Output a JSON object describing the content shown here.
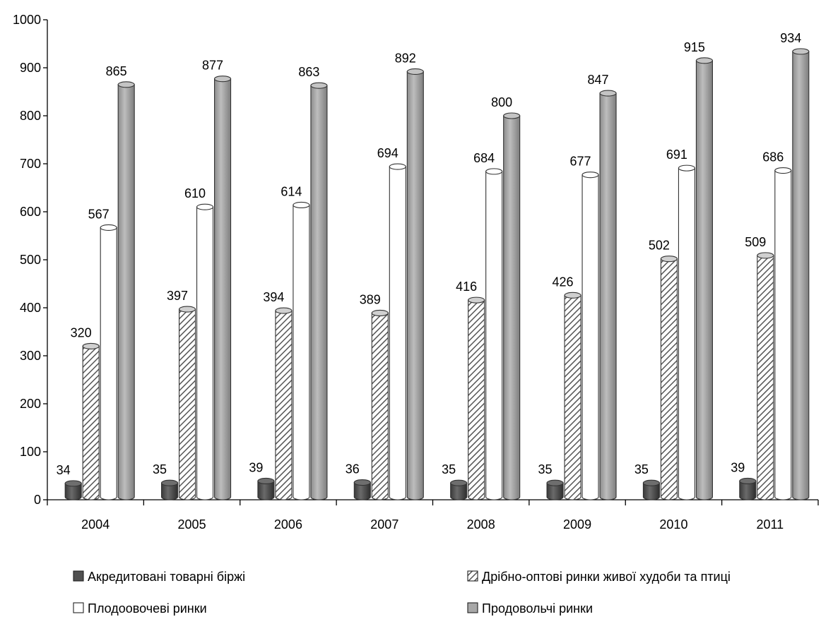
{
  "chart_data": {
    "type": "bar",
    "categories": [
      "2004",
      "2005",
      "2006",
      "2007",
      "2008",
      "2009",
      "2010",
      "2011"
    ],
    "series": [
      {
        "name": "Акредитовані товарні біржі",
        "values": [
          34,
          35,
          39,
          36,
          35,
          35,
          35,
          39
        ],
        "color": "#505050",
        "pattern": "solid"
      },
      {
        "name": "Дрібно-оптові ринки живої худоби та птиці",
        "values": [
          320,
          397,
          394,
          389,
          416,
          426,
          502,
          509
        ],
        "color": "#c8c8c8",
        "pattern": "hatch"
      },
      {
        "name": "Плодоовочеві ринки",
        "values": [
          567,
          610,
          614,
          694,
          684,
          677,
          691,
          686
        ],
        "color": "#ffffff",
        "pattern": "solid"
      },
      {
        "name": "Продовольчі ринки",
        "values": [
          865,
          877,
          863,
          892,
          800,
          847,
          915,
          934
        ],
        "color": "#a8a8a8",
        "pattern": "solid"
      }
    ],
    "yticks": [
      "0",
      "100",
      "200",
      "300",
      "400",
      "500",
      "600",
      "700",
      "800",
      "900",
      "1000"
    ],
    "ylim": [
      0,
      1000
    ],
    "legend_position": "bottom",
    "grid": false
  }
}
